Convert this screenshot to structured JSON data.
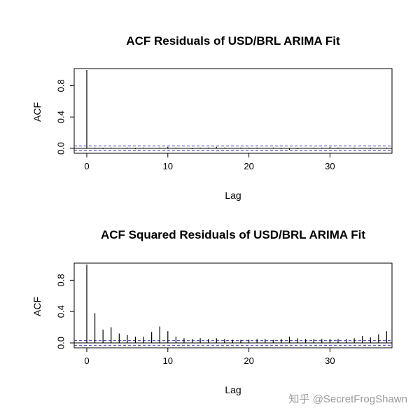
{
  "chart_data": [
    {
      "type": "bar",
      "title": "ACF Residuals of USD/BRL ARIMA Fit",
      "xlabel": "Lag",
      "ylabel": "ACF",
      "xlim": [
        0,
        38
      ],
      "ylim": [
        0,
        1.0
      ],
      "xticks": [
        "0",
        "10",
        "20",
        "30"
      ],
      "yticks": [
        "0.0",
        "0.4",
        "0.8"
      ],
      "conf_band": [
        -0.03,
        0.03
      ],
      "x": [
        0,
        1,
        2,
        3,
        4,
        5,
        6,
        7,
        8,
        9,
        10,
        11,
        12,
        13,
        14,
        15,
        16,
        17,
        18,
        19,
        20,
        21,
        22,
        23,
        24,
        25,
        26,
        27,
        28,
        29,
        30,
        31,
        32,
        33,
        34,
        35,
        36,
        37
      ],
      "values": [
        1.0,
        0.01,
        -0.01,
        0.01,
        0.0,
        0.01,
        -0.01,
        0.01,
        0.0,
        0.01,
        0.02,
        0.01,
        0.0,
        -0.01,
        0.01,
        0.01,
        0.02,
        0.01,
        0.0,
        0.01,
        0.01,
        0.01,
        0.0,
        0.01,
        -0.01,
        -0.02,
        -0.01,
        0.0,
        0.01,
        0.01,
        0.02,
        0.01,
        0.0,
        0.01,
        0.0,
        -0.01,
        0.0,
        0.01
      ]
    },
    {
      "type": "bar",
      "title": "ACF Squared Residuals of USD/BRL ARIMA Fit",
      "xlabel": "Lag",
      "ylabel": "ACF",
      "xlim": [
        0,
        38
      ],
      "ylim": [
        0,
        1.0
      ],
      "xticks": [
        "0",
        "10",
        "20",
        "30"
      ],
      "yticks": [
        "0.0",
        "0.4",
        "0.8"
      ],
      "conf_band": [
        -0.03,
        0.03
      ],
      "x": [
        0,
        1,
        2,
        3,
        4,
        5,
        6,
        7,
        8,
        9,
        10,
        11,
        12,
        13,
        14,
        15,
        16,
        17,
        18,
        19,
        20,
        21,
        22,
        23,
        24,
        25,
        26,
        27,
        28,
        29,
        30,
        31,
        32,
        33,
        34,
        35,
        36,
        37
      ],
      "values": [
        1.0,
        0.38,
        0.17,
        0.2,
        0.12,
        0.1,
        0.08,
        0.08,
        0.14,
        0.21,
        0.15,
        0.08,
        0.06,
        0.05,
        0.06,
        0.05,
        0.06,
        0.05,
        0.04,
        0.04,
        0.04,
        0.05,
        0.05,
        0.04,
        0.05,
        0.08,
        0.06,
        0.05,
        0.05,
        0.05,
        0.05,
        0.05,
        0.05,
        0.06,
        0.09,
        0.07,
        0.11,
        0.15
      ]
    }
  ],
  "watermark": "知乎 @SecretFrogShawn",
  "colors": {
    "band": "#3b3bc8",
    "bars": "#000000",
    "frame": "#000000"
  }
}
